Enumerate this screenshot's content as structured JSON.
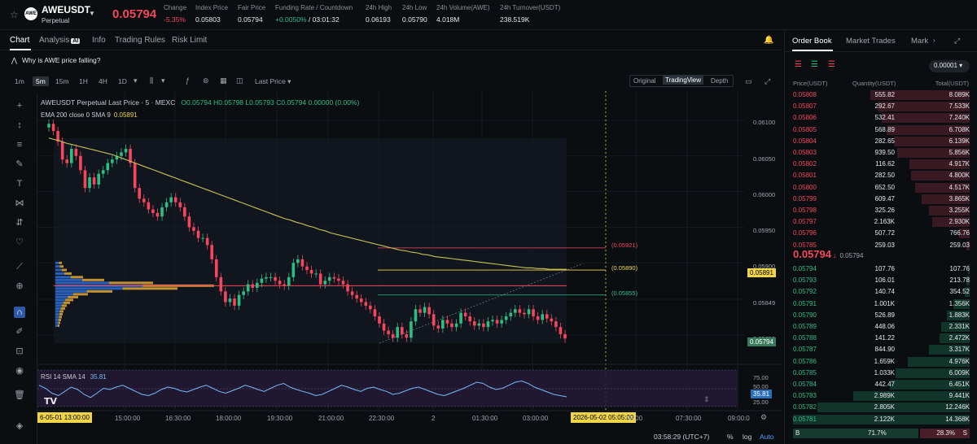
{
  "ticker": {
    "symbol": "AWEUSDT",
    "logo_text": "AWE",
    "subtitle": "Perpetual",
    "last_price": "0.05794",
    "stats": [
      {
        "label": "Change",
        "value": "-5.35%",
        "tone": "red"
      },
      {
        "label": "Index Price",
        "value": "0.05803",
        "tone": "plain"
      },
      {
        "label": "Fair Price",
        "value": "0.05794",
        "tone": "plain"
      },
      {
        "label": "Funding Rate / Countdown",
        "value_rate": "+0.0050%",
        "value_sep": " / ",
        "value_countdown": "03:01:32",
        "tone": "funding"
      },
      {
        "label": "24h High",
        "value": "0.06193",
        "tone": "plain"
      },
      {
        "label": "24h Low",
        "value": "0.05790",
        "tone": "plain"
      },
      {
        "label": "24h Volume(AWE)",
        "value": "4.018M",
        "tone": "plain"
      },
      {
        "label": "24h Turnover(USDT)",
        "value": "238.519K",
        "tone": "plain"
      }
    ]
  },
  "chart_tabs": [
    "Chart",
    "Analysis",
    "Info",
    "Trading Rules",
    "Risk Limit"
  ],
  "ai_badge": "AI",
  "why_text": "Why is AWE price falling?",
  "intervals": [
    "1m",
    "5m",
    "15m",
    "1H",
    "4H",
    "1D"
  ],
  "active_interval": "5m",
  "price_type": "Last Price",
  "views": [
    "Original",
    "TradingView",
    "Depth"
  ],
  "active_view": "TradingView",
  "legend": {
    "title": "AWEUSDT Perpetual Last Price · 5 · MEXC",
    "o": "O0.05794",
    "h": "H0.05798",
    "l": "L0.05793",
    "c": "C0.05794",
    "chg": "0.00000 (0.00%)",
    "ema": "EMA 200 close 0 SMA 9",
    "ema_value": "0.05891"
  },
  "rsi_legend": {
    "label": "RSI 14 SMA 14",
    "value": "35.81"
  },
  "y_axis": [
    "0.06100",
    "0.06050",
    "0.06000",
    "0.05950",
    "0.05900",
    "0.05849",
    "0.05799"
  ],
  "y_badges": {
    "ema": "0.05891",
    "last": "0.05794",
    "rsi": "35.81"
  },
  "rsi_axis": [
    "75.00",
    "50.00",
    "25.00"
  ],
  "levels": [
    {
      "label": "(0.05921)",
      "price": 0.05921,
      "color": "#f6465d"
    },
    {
      "label": "(0.05890)",
      "price": 0.0589,
      "color": "#f0d548"
    },
    {
      "label": "(0.05855)",
      "price": 0.05855,
      "color": "#2ebd85"
    }
  ],
  "x_axis": [
    "15:00:00",
    "16:30:00",
    "18:00:00",
    "19:30:00",
    "21:00:00",
    "22:30:00",
    "2",
    "01:30:00",
    "03:00:00",
    "07:30:00",
    "09:00:0"
  ],
  "x_badges": {
    "start": "6-05-01  13:00:00",
    "end": "2026-05-02  05:05:00",
    "end_tail": "05:00"
  },
  "bottom": {
    "time": "03:58:29 (UTC+7)",
    "percent": "%",
    "log": "log",
    "auto": "Auto"
  },
  "chart_data": {
    "type": "candlestick",
    "title": "AWEUSDT Perpetual Last Price · 5 · MEXC",
    "ylim": [
      0.05776,
      0.06125
    ],
    "closes": [
      0.06095,
      0.06085,
      0.0607,
      0.06045,
      0.0604,
      0.0606,
      0.0605,
      0.0603,
      0.06005,
      0.0602,
      0.0601,
      0.06025,
      0.0603,
      0.0604,
      0.06045,
      0.0605,
      0.06055,
      0.0606,
      0.0604,
      0.06005,
      0.0599,
      0.05985,
      0.05975,
      0.0597,
      0.05965,
      0.05978,
      0.05985,
      0.05992,
      0.05985,
      0.05978,
      0.05965,
      0.0595,
      0.05945,
      0.05935,
      0.05935,
      0.05925,
      0.05905,
      0.0588,
      0.0586,
      0.05845,
      0.0585,
      0.0584,
      0.05855,
      0.0586,
      0.0587,
      0.05865,
      0.05872,
      0.05878,
      0.0588,
      0.0588,
      0.05875,
      0.0587,
      0.05868,
      0.0588,
      0.059,
      0.05905,
      0.05895,
      0.0589,
      0.05885,
      0.05885,
      0.0587,
      0.05875,
      0.0588,
      0.05878,
      0.05875,
      0.0587,
      0.0586,
      0.05855,
      0.0585,
      0.05845,
      0.0584,
      0.05835,
      0.05825,
      0.05815,
      0.05805,
      0.058,
      0.05795,
      0.0581,
      0.058,
      0.05795,
      0.05818,
      0.05835,
      0.0583,
      0.05838,
      0.05828,
      0.05812,
      0.05808,
      0.0582,
      0.05815,
      0.0581,
      0.05815,
      0.0583,
      0.05825,
      0.05818,
      0.05812,
      0.05815,
      0.0581,
      0.05818,
      0.0582,
      0.05815,
      0.0582,
      0.05825,
      0.0583,
      0.05835,
      0.0583,
      0.05828,
      0.05835,
      0.05825,
      0.0582,
      0.05828,
      0.05822,
      0.05818,
      0.0581,
      0.058,
      0.05794
    ],
    "ema200": [
      0.06075,
      0.06073,
      0.06071,
      0.06068,
      0.06066,
      0.06064,
      0.06062,
      0.0606,
      0.06058,
      0.06056,
      0.06054,
      0.06052,
      0.06049,
      0.06046,
      0.06043,
      0.0604,
      0.06037,
      0.06034,
      0.06031,
      0.06028,
      0.06025,
      0.06022,
      0.06019,
      0.06016,
      0.06013,
      0.0601,
      0.06007,
      0.06004,
      0.06001,
      0.05998,
      0.05995,
      0.05992,
      0.05989,
      0.05986,
      0.05983,
      0.0598,
      0.05977,
      0.05974,
      0.05971,
      0.05968,
      0.05965,
      0.05962,
      0.0596,
      0.05957,
      0.05955,
      0.05952,
      0.0595,
      0.05947,
      0.05945,
      0.05942,
      0.0594,
      0.05938,
      0.05936,
      0.05934,
      0.05932,
      0.0593,
      0.05928,
      0.05926,
      0.05924,
      0.05922,
      0.0592,
      0.05918,
      0.05917,
      0.05915,
      0.05914,
      0.05912,
      0.05911,
      0.05909,
      0.05908,
      0.05907,
      0.05906,
      0.05905,
      0.05904,
      0.05903,
      0.05902,
      0.05901,
      0.059,
      0.05899,
      0.05898,
      0.05897,
      0.05896,
      0.05895,
      0.05894,
      0.05893,
      0.05893,
      0.05892,
      0.05892,
      0.05891,
      0.05891,
      0.05891,
      0.05891
    ],
    "rsi": [
      55,
      50,
      42,
      38,
      45,
      52,
      48,
      40,
      35,
      42,
      50,
      48,
      52,
      55,
      50,
      45,
      40,
      38,
      42,
      48,
      52,
      50,
      46,
      44,
      48,
      52,
      55,
      50,
      45,
      42,
      46,
      50,
      55,
      52,
      48,
      45,
      50,
      55,
      58,
      52,
      48,
      45,
      42,
      38,
      40,
      45,
      50,
      55,
      52,
      48,
      45,
      50,
      52,
      48,
      45,
      40,
      42,
      46,
      50,
      52,
      48,
      44,
      40,
      38,
      42,
      46,
      50,
      55,
      60,
      58,
      52,
      48,
      50,
      55,
      60,
      62,
      58,
      52,
      48,
      44,
      40,
      38,
      36
    ],
    "rsi_ylim": [
      20,
      80
    ]
  },
  "order_book": {
    "tabs": [
      "Order Book",
      "Market Trades",
      "Mark"
    ],
    "precision": "0.00001",
    "headers": {
      "price": "Price(USDT)",
      "qty": "Quantity(USDT)",
      "total": "Total(USDT)"
    },
    "asks": [
      {
        "price": "0.05808",
        "qty": "555.82",
        "total": "8.089K",
        "depth": 0.56
      },
      {
        "price": "0.05807",
        "qty": "292.67",
        "total": "7.533K",
        "depth": 0.52
      },
      {
        "price": "0.05806",
        "qty": "532.41",
        "total": "7.240K",
        "depth": 0.5
      },
      {
        "price": "0.05805",
        "qty": "568.89",
        "total": "6.708K",
        "depth": 0.47
      },
      {
        "price": "0.05804",
        "qty": "282.65",
        "total": "6.139K",
        "depth": 0.43
      },
      {
        "price": "0.05803",
        "qty": "939.50",
        "total": "5.856K",
        "depth": 0.41
      },
      {
        "price": "0.05802",
        "qty": "116.62",
        "total": "4.917K",
        "depth": 0.34
      },
      {
        "price": "0.05801",
        "qty": "282.50",
        "total": "4.800K",
        "depth": 0.33
      },
      {
        "price": "0.05800",
        "qty": "652.50",
        "total": "4.517K",
        "depth": 0.31
      },
      {
        "price": "0.05799",
        "qty": "609.47",
        "total": "3.865K",
        "depth": 0.27
      },
      {
        "price": "0.05798",
        "qty": "325.26",
        "total": "3.255K",
        "depth": 0.23
      },
      {
        "price": "0.05797",
        "qty": "2.163K",
        "total": "2.930K",
        "depth": 0.21
      },
      {
        "price": "0.05796",
        "qty": "507.72",
        "total": "766.76",
        "depth": 0.06
      },
      {
        "price": "0.05785",
        "qty": "259.03",
        "total": "259.03",
        "depth": 0.02
      }
    ],
    "mid_price": "0.05794",
    "mid_arrow": "↓",
    "mid_index": "0.05794",
    "bids": [
      {
        "price": "0.05794",
        "qty": "107.76",
        "total": "107.76",
        "depth": 0.01
      },
      {
        "price": "0.05793",
        "qty": "106.01",
        "total": "213.78",
        "depth": 0.02
      },
      {
        "price": "0.05792",
        "qty": "140.74",
        "total": "354.52",
        "depth": 0.03
      },
      {
        "price": "0.05791",
        "qty": "1.001K",
        "total": "1.356K",
        "depth": 0.09
      },
      {
        "price": "0.05790",
        "qty": "526.89",
        "total": "1.883K",
        "depth": 0.13
      },
      {
        "price": "0.05789",
        "qty": "448.06",
        "total": "2.331K",
        "depth": 0.16
      },
      {
        "price": "0.05788",
        "qty": "141.22",
        "total": "2.472K",
        "depth": 0.17
      },
      {
        "price": "0.05787",
        "qty": "844.90",
        "total": "3.317K",
        "depth": 0.23
      },
      {
        "price": "0.05786",
        "qty": "1.659K",
        "total": "4.976K",
        "depth": 0.35
      },
      {
        "price": "0.05785",
        "qty": "1.033K",
        "total": "6.009K",
        "depth": 0.42
      },
      {
        "price": "0.05784",
        "qty": "442.47",
        "total": "6.451K",
        "depth": 0.45
      },
      {
        "price": "0.05783",
        "qty": "2.989K",
        "total": "9.441K",
        "depth": 0.66
      },
      {
        "price": "0.05782",
        "qty": "2.805K",
        "total": "12.246K",
        "depth": 0.86
      },
      {
        "price": "0.05781",
        "qty": "2.122K",
        "total": "14.368K",
        "depth": 1.0
      }
    ],
    "ratio": {
      "buy_label": "B",
      "buy_pct": "71.7%",
      "sell_pct": "28.3%",
      "sell_label": "S",
      "buy_share": 0.717
    },
    "colors": {
      "ask": "#f6465d",
      "bid": "#2ebd85",
      "ask_bar": "#3a1a22",
      "bid_bar": "#12352a"
    }
  }
}
